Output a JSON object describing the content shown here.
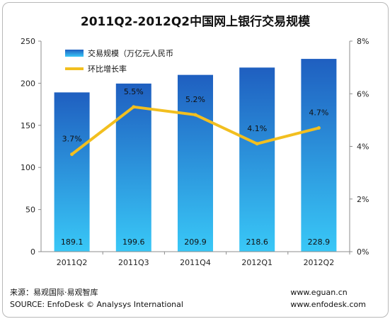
{
  "chart_data": {
    "type": "bar",
    "title": "2011Q2-2012Q2中国网上银行交易规模",
    "categories": [
      "2011Q2",
      "2011Q3",
      "2011Q4",
      "2012Q1",
      "2012Q2"
    ],
    "series": [
      {
        "name": "交易规模（万亿元人民币",
        "type": "bar",
        "axis": "left",
        "values": [
          189.1,
          199.6,
          209.9,
          218.6,
          228.9
        ],
        "labels": [
          "189.1",
          "199.6",
          "209.9",
          "218.6",
          "228.9"
        ]
      },
      {
        "name": "环比增长率",
        "type": "line",
        "axis": "right",
        "values": [
          3.7,
          5.5,
          5.2,
          4.1,
          4.7
        ],
        "labels": [
          "3.7%",
          "5.5%",
          "5.2%",
          "4.1%",
          "4.7%"
        ]
      }
    ],
    "ylim": [
      0,
      250
    ],
    "y_ticks": [
      "0",
      "50",
      "100",
      "150",
      "200",
      "250"
    ],
    "y2lim": [
      0,
      8
    ],
    "y2_ticks": [
      "0%",
      "2%",
      "4%",
      "6%",
      "8%"
    ],
    "grid": false,
    "legend": "top-left",
    "colors": {
      "bar_top": "#1f5fc0",
      "bar_bottom": "#39c8f7",
      "line": "#f2bf1f",
      "axis": "#8c8c8c"
    }
  },
  "source": {
    "cn": "来源：易观国际·易观智库",
    "en": "SOURCE: EnfoDesk © Analysys International"
  },
  "sites": {
    "site1": "www.eguan.cn",
    "site2": "www.enfodesk.com"
  }
}
